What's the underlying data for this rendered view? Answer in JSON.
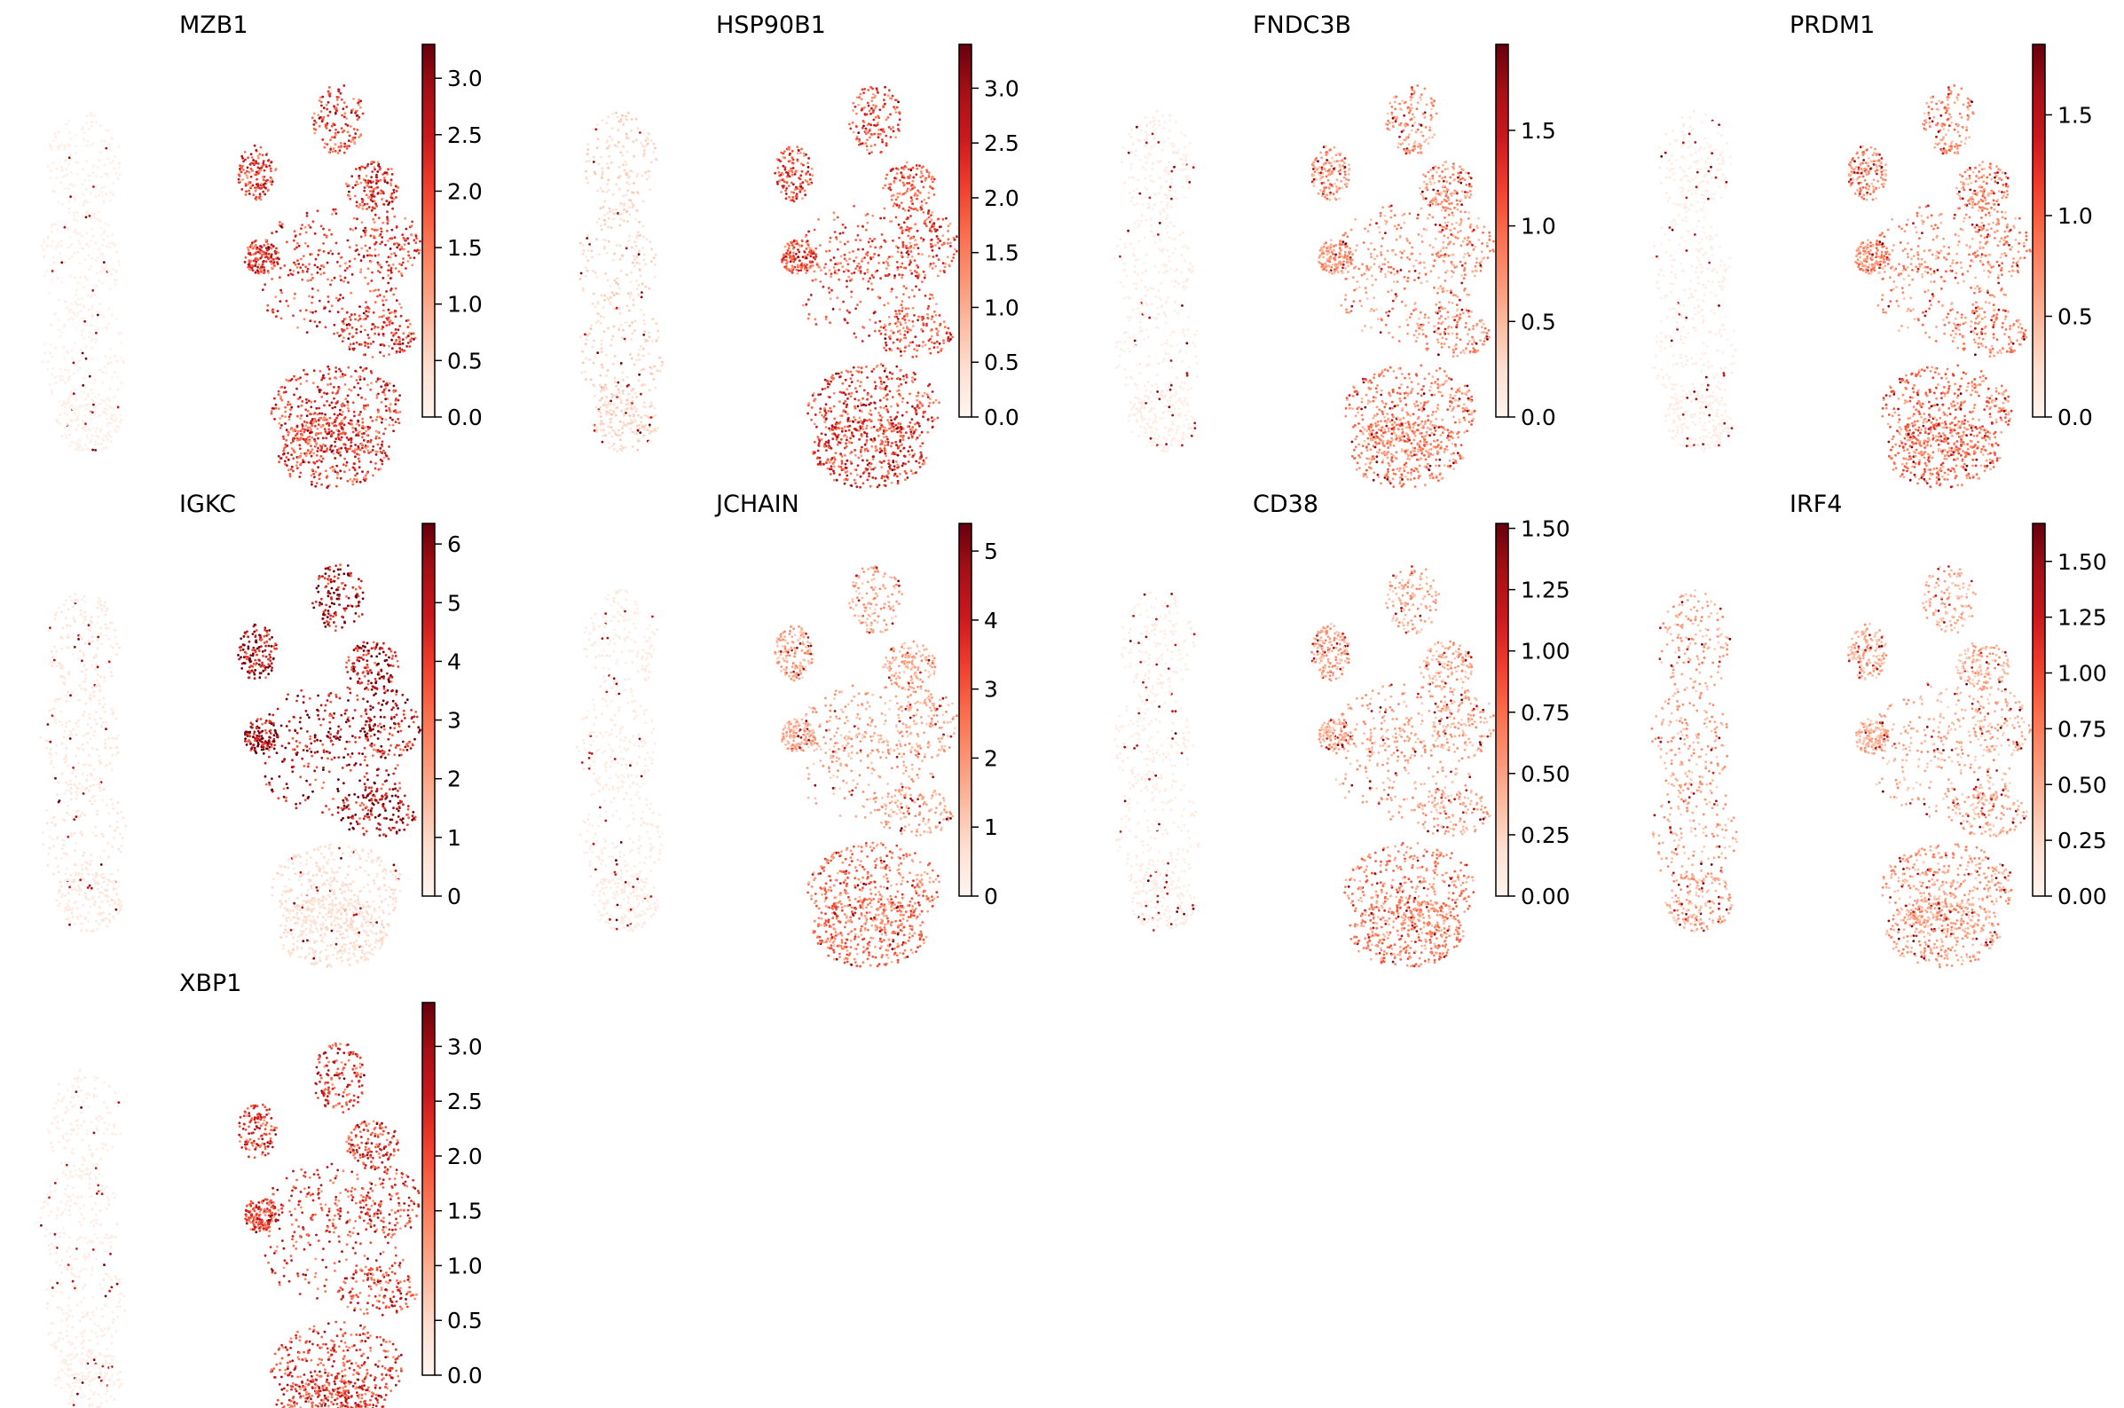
{
  "figure": {
    "colormap": "Reds",
    "colormap_stops": [
      "#fff5f0",
      "#fee0d2",
      "#fcbba1",
      "#fc9272",
      "#fb6a4a",
      "#ef3b2c",
      "#cb181d",
      "#a50f15",
      "#67000d"
    ]
  },
  "chart_data": [
    {
      "type": "scatter",
      "title": "MZB1",
      "vmin": 0.0,
      "vmax": 3.3,
      "ticks": [
        0.0,
        0.5,
        1.0,
        1.5,
        2.0,
        2.5,
        3.0
      ],
      "tick_labels": [
        "0.0",
        "0.5",
        "1.0",
        "1.5",
        "2.0",
        "2.5",
        "3.0"
      ],
      "expression": {
        "left_cluster": 0.04,
        "right_upper": 0.6,
        "right_lower": 0.62,
        "speckle": 0.35
      }
    },
    {
      "type": "scatter",
      "title": "HSP90B1",
      "vmin": 0.0,
      "vmax": 3.4,
      "ticks": [
        0.0,
        0.5,
        1.0,
        1.5,
        2.0,
        2.5,
        3.0
      ],
      "tick_labels": [
        "0.0",
        "0.5",
        "1.0",
        "1.5",
        "2.0",
        "2.5",
        "3.0"
      ],
      "expression": {
        "left_cluster": 0.15,
        "right_upper": 0.55,
        "right_lower": 0.6,
        "speckle": 0.3
      }
    },
    {
      "type": "scatter",
      "title": "FNDC3B",
      "vmin": 0.0,
      "vmax": 1.95,
      "ticks": [
        0.0,
        0.5,
        1.0,
        1.5
      ],
      "tick_labels": [
        "0.0",
        "0.5",
        "1.0",
        "1.5"
      ],
      "expression": {
        "left_cluster": 0.05,
        "right_upper": 0.35,
        "right_lower": 0.4,
        "speckle": 0.45
      }
    },
    {
      "type": "scatter",
      "title": "PRDM1",
      "vmin": 0.0,
      "vmax": 1.85,
      "ticks": [
        0.0,
        0.5,
        1.0,
        1.5
      ],
      "tick_labels": [
        "0.0",
        "0.5",
        "1.0",
        "1.5"
      ],
      "expression": {
        "left_cluster": 0.05,
        "right_upper": 0.38,
        "right_lower": 0.45,
        "speckle": 0.45
      }
    },
    {
      "type": "scatter",
      "title": "IGKC",
      "vmin": 0,
      "vmax": 6.35,
      "ticks": [
        0,
        1,
        2,
        3,
        4,
        5,
        6
      ],
      "tick_labels": [
        "0",
        "1",
        "2",
        "3",
        "4",
        "5",
        "6"
      ],
      "expression": {
        "left_cluster": 0.08,
        "right_upper": 0.82,
        "right_lower": 0.12,
        "speckle": 0.25
      }
    },
    {
      "type": "scatter",
      "title": "JCHAIN",
      "vmin": 0,
      "vmax": 5.4,
      "ticks": [
        0,
        1,
        2,
        3,
        4,
        5
      ],
      "tick_labels": [
        "0",
        "1",
        "2",
        "3",
        "4",
        "5"
      ],
      "expression": {
        "left_cluster": 0.06,
        "right_upper": 0.3,
        "right_lower": 0.45,
        "speckle": 0.4
      }
    },
    {
      "type": "scatter",
      "title": "CD38",
      "vmin": 0.0,
      "vmax": 1.52,
      "ticks": [
        0.0,
        0.25,
        0.5,
        0.75,
        1.0,
        1.25,
        1.5
      ],
      "tick_labels": [
        "0.00",
        "0.25",
        "0.50",
        "0.75",
        "1.00",
        "1.25",
        "1.50"
      ],
      "expression": {
        "left_cluster": 0.05,
        "right_upper": 0.3,
        "right_lower": 0.4,
        "speckle": 0.5
      }
    },
    {
      "type": "scatter",
      "title": "IRF4",
      "vmin": 0.0,
      "vmax": 1.67,
      "ticks": [
        0.0,
        0.25,
        0.5,
        0.75,
        1.0,
        1.25,
        1.5
      ],
      "tick_labels": [
        "0.00",
        "0.25",
        "0.50",
        "0.75",
        "1.00",
        "1.25",
        "1.50"
      ],
      "expression": {
        "left_cluster": 0.3,
        "right_upper": 0.28,
        "right_lower": 0.32,
        "speckle": 0.5
      }
    },
    {
      "type": "scatter",
      "title": "XBP1",
      "vmin": 0.0,
      "vmax": 3.4,
      "ticks": [
        0.0,
        0.5,
        1.0,
        1.5,
        2.0,
        2.5,
        3.0
      ],
      "tick_labels": [
        "0.0",
        "0.5",
        "1.0",
        "1.5",
        "2.0",
        "2.5",
        "3.0"
      ],
      "expression": {
        "left_cluster": 0.05,
        "right_upper": 0.6,
        "right_lower": 0.62,
        "speckle": 0.35
      }
    }
  ]
}
